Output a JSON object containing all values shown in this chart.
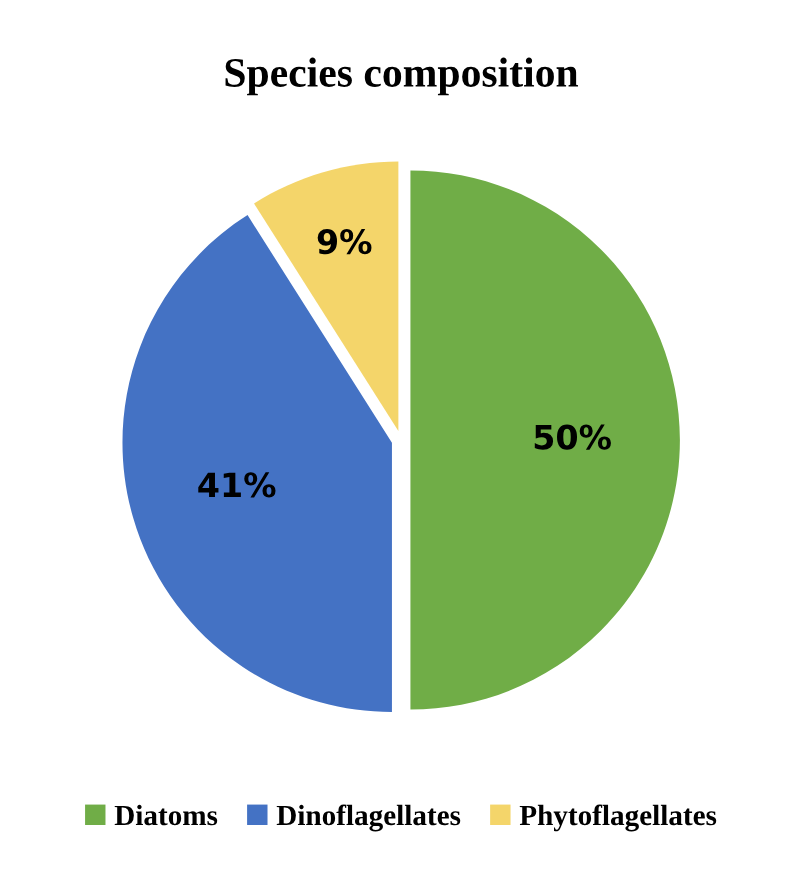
{
  "chart_data": {
    "type": "pie",
    "title": "Species composition",
    "categories": [
      "Diatoms",
      "Dinoflagellates",
      "Phytoflagellates"
    ],
    "values": [
      50,
      41,
      9
    ],
    "colors": [
      "#70ad47",
      "#4472c4",
      "#f4d56a"
    ],
    "value_labels": [
      "50%",
      "41%",
      "9%"
    ],
    "legend": "bottom"
  }
}
